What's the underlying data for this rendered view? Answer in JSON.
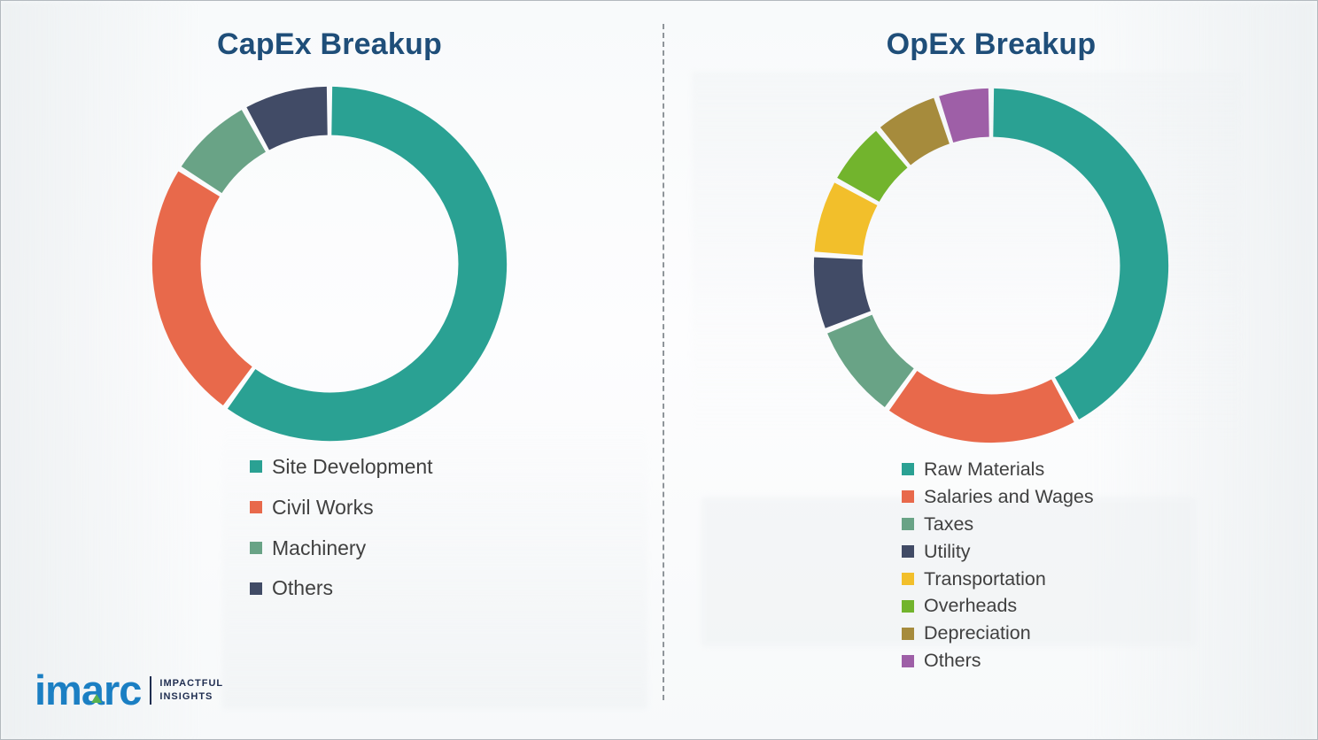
{
  "chart_data": [
    {
      "type": "pie",
      "variant": "donut",
      "title": "CapEx Breakup",
      "labels": [
        "Site Development",
        "Civil Works",
        "Machinery",
        "Others"
      ],
      "values": [
        60,
        24,
        8,
        8
      ],
      "colors": [
        "#2AA193",
        "#E8694B",
        "#69A386",
        "#414B66"
      ],
      "legend_position": "bottom-left",
      "start_angle": "top",
      "direction": "clockwise"
    },
    {
      "type": "pie",
      "variant": "donut",
      "title": "OpEx Breakup",
      "labels": [
        "Raw Materials",
        "Salaries and Wages",
        "Taxes",
        "Utility",
        "Transportation",
        "Overheads",
        "Depreciation",
        "Others"
      ],
      "values": [
        42,
        18,
        9,
        7,
        7,
        6,
        6,
        5
      ],
      "colors": [
        "#2AA193",
        "#E8694B",
        "#69A386",
        "#414B66",
        "#F2BF2B",
        "#72B42D",
        "#A68B3C",
        "#9E5FA7"
      ],
      "legend_position": "bottom-left",
      "start_angle": "top",
      "direction": "clockwise"
    }
  ],
  "logo": {
    "brand": "imarc",
    "tagline_top": "IMPACTFUL",
    "tagline_bottom": "INSIGHTS"
  }
}
